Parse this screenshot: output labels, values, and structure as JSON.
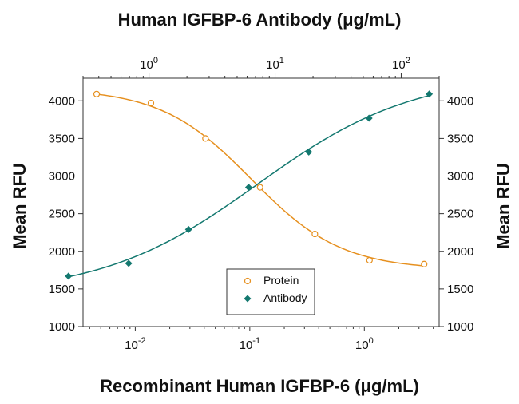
{
  "chart_data": {
    "type": "scatter",
    "title": "Human IGFBP-6 Antibody (μg/mL)",
    "xlabel": "Recombinant Human IGFBP-6 (μg/mL)",
    "ylabel_left": "Mean RFU",
    "ylabel_right": "Mean RFU",
    "x_scale": "log",
    "x_top_scale": "log",
    "xlim_bottom": [
      0.0035,
      4.5
    ],
    "xlim_top": [
      0.3,
      200
    ],
    "ylim": [
      1000,
      4300
    ],
    "y_ticks": [
      1000,
      1500,
      2000,
      2500,
      3000,
      3500,
      4000
    ],
    "x_bottom_ticks": [
      {
        "value": 0.01,
        "base": "10",
        "exp": "-2"
      },
      {
        "value": 0.1,
        "base": "10",
        "exp": "-1"
      },
      {
        "value": 1,
        "base": "10",
        "exp": "0"
      }
    ],
    "x_top_ticks": [
      {
        "value": 1,
        "base": "10",
        "exp": "0"
      },
      {
        "value": 10,
        "base": "10",
        "exp": "1"
      },
      {
        "value": 100,
        "base": "10",
        "exp": "2"
      }
    ],
    "grid": false,
    "legend_position": "bottom-center",
    "series": [
      {
        "name": "Protein",
        "axis": "bottom",
        "marker": "open-circle",
        "color": "#e6901f",
        "x": [
          0.0046,
          0.0137,
          0.041,
          0.123,
          0.37,
          1.11,
          3.33
        ],
        "y": [
          4090,
          3970,
          3500,
          2850,
          2230,
          1880,
          1830
        ]
      },
      {
        "name": "Antibody",
        "axis": "top",
        "marker": "filled-diamond",
        "color": "#13786f",
        "x": [
          0.23,
          0.69,
          2.06,
          6.17,
          18.5,
          55.6,
          167
        ],
        "y": [
          1670,
          1840,
          2290,
          2850,
          3320,
          3770,
          4090
        ]
      }
    ]
  }
}
